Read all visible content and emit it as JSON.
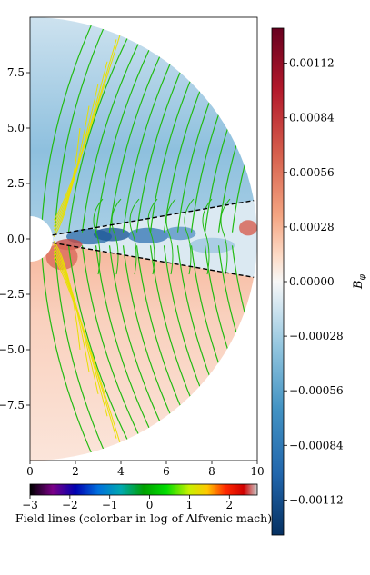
{
  "chart_data": {
    "type": "heatmap",
    "description_free": true,
    "main_plot": {
      "xlim": [
        0,
        10
      ],
      "ylim": [
        -10,
        10
      ],
      "x_ticks": [
        0,
        2,
        4,
        6,
        8,
        10
      ],
      "x_tick_labels": [
        "0",
        "2",
        "4",
        "6",
        "8",
        "10"
      ],
      "y_ticks": [
        7.5,
        5.0,
        2.5,
        0.0,
        -2.5,
        -5.0,
        -7.5
      ],
      "y_tick_labels": [
        "7.5",
        "5.0",
        "2.5",
        "0.0",
        "−2.5",
        "−5.0",
        "−7.5"
      ],
      "outer_radius": 10,
      "inner_radius": 1,
      "disk_boundary_angles_deg": [
        10,
        -10
      ],
      "upper_region_sign": "negative",
      "lower_region_sign": "positive"
    },
    "colorbar_right": {
      "label": "B_φ",
      "label_main": "B",
      "label_sub": "φ",
      "range": [
        -0.0013,
        0.0013
      ],
      "ticks": [
        0.00112,
        0.00084,
        0.00056,
        0.00028,
        0.0,
        -0.00028,
        -0.00056,
        -0.00084,
        -0.00112
      ],
      "tick_labels": [
        "0.00112",
        "0.00084",
        "0.00056",
        "0.00028",
        "0.00000",
        "−0.00028",
        "−0.00056",
        "−0.00084",
        "−0.00112"
      ],
      "colormap": "RdBu_r"
    },
    "colorbar_bottom": {
      "label": "Field lines (colorbar in log of Alfvenic mach)",
      "range": [
        -3,
        2.7
      ],
      "ticks": [
        -3,
        -2,
        -1,
        0,
        1,
        2
      ],
      "tick_labels": [
        "−3",
        "−2",
        "−1",
        "0",
        "1",
        "2"
      ],
      "colormap": "nipy_spectral"
    }
  },
  "colors": {
    "streamline": "#22bb11",
    "streamline_inner": "#e8e000",
    "dashed_line": "#000000"
  }
}
